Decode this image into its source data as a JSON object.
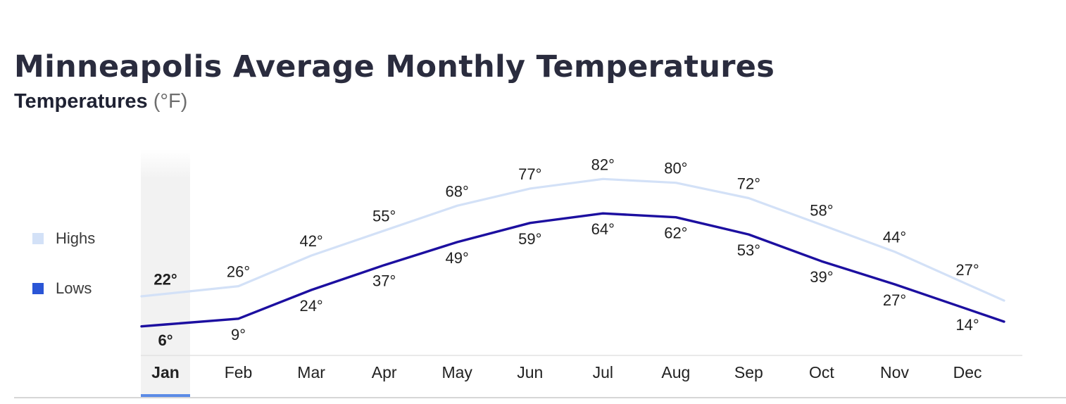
{
  "chart_data": {
    "type": "line",
    "title": "Minneapolis Average Monthly Temperatures",
    "subtitle": "Temperatures",
    "unit": "(°F)",
    "categories": [
      "Jan",
      "Feb",
      "Mar",
      "Apr",
      "May",
      "Jun",
      "Jul",
      "Aug",
      "Sep",
      "Oct",
      "Nov",
      "Dec"
    ],
    "selected_category": "Jan",
    "series": [
      {
        "name": "Highs",
        "color": "#d3e1f7",
        "values": [
          22,
          26,
          42,
          55,
          68,
          77,
          82,
          80,
          72,
          58,
          44,
          27
        ],
        "labels": [
          "22°",
          "26°",
          "42°",
          "55°",
          "68°",
          "77°",
          "82°",
          "80°",
          "72°",
          "58°",
          "44°",
          "27°"
        ]
      },
      {
        "name": "Lows",
        "color": "#1c0fa0",
        "legend_color": "#2a55d6",
        "values": [
          6,
          9,
          24,
          37,
          49,
          59,
          64,
          62,
          53,
          39,
          27,
          14
        ],
        "labels": [
          "6°",
          "9°",
          "24°",
          "37°",
          "49°",
          "59°",
          "64°",
          "62°",
          "53°",
          "39°",
          "27°",
          "14°"
        ]
      }
    ],
    "legend_position": "left",
    "grid": false,
    "highlight_color": "#f2f2f2",
    "indicator_color": "#5b8be6"
  }
}
